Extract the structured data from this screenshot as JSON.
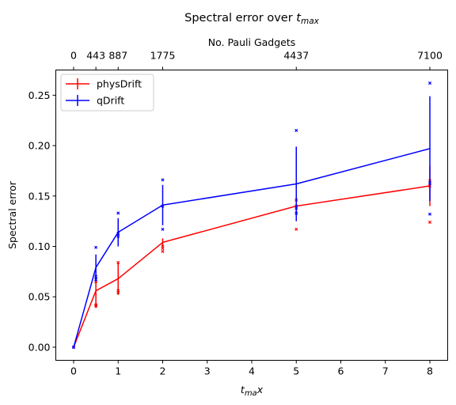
{
  "chart_data": {
    "type": "line",
    "title_main": "Spectral error over ",
    "title_sym": "t",
    "title_sub": "max",
    "xlabel_sym": "t",
    "xlabel_sub": "ma",
    "xlabel_tail": "x",
    "ylabel": "Spectral error",
    "top_xlabel": "No. Pauli Gadgets",
    "xlim": [
      -0.4,
      8.4
    ],
    "ylim": [
      -0.013,
      0.275
    ],
    "x_ticks": [
      0,
      1,
      2,
      3,
      4,
      5,
      6,
      7,
      8
    ],
    "x_tick_labels": [
      "0",
      "1",
      "2",
      "3",
      "4",
      "5",
      "6",
      "7",
      "8"
    ],
    "y_ticks": [
      0.0,
      0.05,
      0.1,
      0.15,
      0.2,
      0.25
    ],
    "y_tick_labels": [
      "0.00",
      "0.05",
      "0.10",
      "0.15",
      "0.20",
      "0.25"
    ],
    "top_ticks": [
      0,
      0.5,
      1,
      2,
      5,
      8
    ],
    "top_tick_labels": [
      "0",
      "443",
      "887",
      "1775",
      "4437",
      "7100"
    ],
    "legend_position": "upper-left",
    "series": [
      {
        "name": "physDrift",
        "color": "#ff0000",
        "x": [
          0,
          0.5,
          1,
          2,
          5,
          8
        ],
        "y": [
          0.0,
          0.056,
          0.068,
          0.104,
          0.14,
          0.16
        ],
        "yerr": [
          0.0,
          0.017,
          0.016,
          0.004,
          0.01,
          0.02
        ],
        "samples": [
          [
            0.0,
            0.0,
            0.0
          ],
          [
            0.041,
            0.042,
            0.065
          ],
          [
            0.054,
            0.056,
            0.084
          ],
          [
            0.095,
            0.098,
            0.1
          ],
          [
            0.117,
            0.14,
            0.146
          ],
          [
            0.124,
            0.16,
            0.165
          ]
        ]
      },
      {
        "name": "qDrift",
        "color": "#0000ff",
        "x": [
          0,
          0.5,
          1,
          2,
          5,
          8
        ],
        "y": [
          0.0,
          0.079,
          0.114,
          0.141,
          0.162,
          0.197
        ],
        "yerr": [
          0.0,
          0.013,
          0.014,
          0.02,
          0.037,
          0.052
        ],
        "samples": [
          [
            0.0,
            0.0,
            0.0
          ],
          [
            0.067,
            0.07,
            0.099
          ],
          [
            0.11,
            0.113,
            0.133
          ],
          [
            0.117,
            0.14,
            0.166
          ],
          [
            0.133,
            0.138,
            0.215
          ],
          [
            0.132,
            0.163,
            0.262
          ]
        ]
      }
    ]
  }
}
